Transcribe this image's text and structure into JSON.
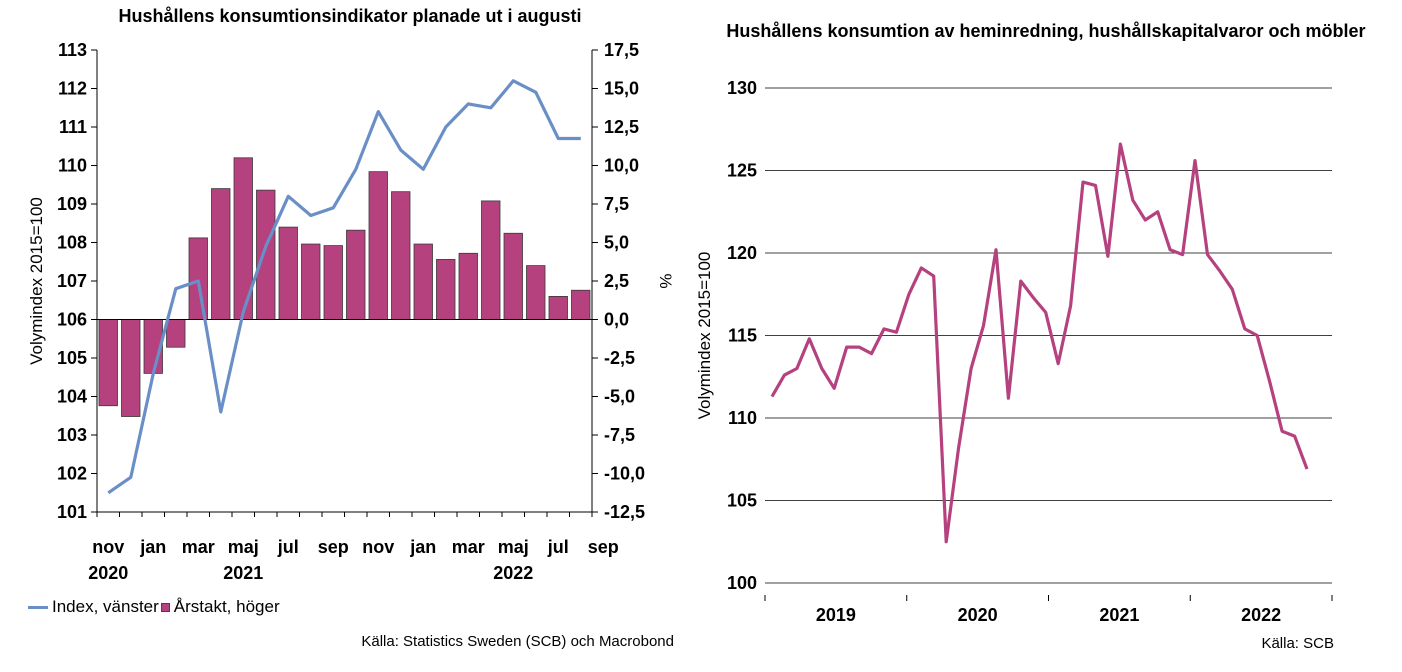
{
  "chart_data": [
    {
      "type": "bar+line",
      "title": "Hushållens konsumtionsindikator planade ut i augusti",
      "ylabel_left": "Volymindex 2015=100",
      "ylabel_right": "%",
      "ylim_left": [
        101,
        113
      ],
      "ylim_right": [
        -12.5,
        17.5
      ],
      "yticks_left": [
        "113",
        "112",
        "111",
        "110",
        "109",
        "108",
        "107",
        "106",
        "105",
        "104",
        "103",
        "102",
        "101"
      ],
      "yticks_right": [
        "17,5",
        "15,0",
        "12,5",
        "10,0",
        "7,5",
        "5,0",
        "2,5",
        "0,0",
        "-2,5",
        "-5,0",
        "-7,5",
        "-10,0",
        "-12,5"
      ],
      "x_tick_labels": [
        "nov",
        "jan",
        "mar",
        "maj",
        "jul",
        "sep",
        "nov",
        "jan",
        "mar",
        "maj",
        "jul",
        "sep"
      ],
      "x_year_labels": [
        {
          "label": "2020",
          "index": 0
        },
        {
          "label": "2021",
          "index": 6
        },
        {
          "label": "2022",
          "index": 18
        }
      ],
      "categories": [
        "2020-11",
        "2020-12",
        "2021-01",
        "2021-02",
        "2021-03",
        "2021-04",
        "2021-05",
        "2021-06",
        "2021-07",
        "2021-08",
        "2021-09",
        "2021-10",
        "2021-11",
        "2021-12",
        "2022-01",
        "2022-02",
        "2022-03",
        "2022-04",
        "2022-05",
        "2022-06",
        "2022-07",
        "2022-08"
      ],
      "series": [
        {
          "name": "Index, vänster",
          "kind": "line",
          "axis": "left",
          "color": "#6a8fc7",
          "values": [
            101.5,
            101.9,
            104.6,
            106.8,
            107.0,
            103.6,
            106.2,
            107.9,
            109.2,
            108.7,
            108.9,
            109.9,
            111.4,
            110.4,
            109.9,
            111.0,
            111.6,
            111.5,
            112.2,
            111.9,
            110.7,
            110.7
          ]
        },
        {
          "name": "Årstakt, höger",
          "kind": "bar",
          "axis": "right",
          "color": "#b5417f",
          "values": [
            -5.6,
            -6.3,
            -3.5,
            -1.8,
            5.3,
            8.5,
            10.5,
            8.4,
            6.0,
            4.9,
            4.8,
            5.8,
            9.6,
            8.3,
            4.9,
            3.9,
            4.3,
            7.7,
            5.6,
            3.5,
            1.5,
            1.9
          ]
        }
      ],
      "source": "Källa: Statistics Sweden (SCB) och Macrobond"
    },
    {
      "type": "line",
      "title": "Hushållens konsumtion av heminredning, hushållskapitalvaror och möbler",
      "ylabel": "Volymindex 2015=100",
      "ylim": [
        100,
        130
      ],
      "yticks": [
        "130",
        "125",
        "120",
        "115",
        "110",
        "105",
        "100"
      ],
      "x_year_labels": [
        "2019",
        "2020",
        "2021",
        "2022"
      ],
      "series": [
        {
          "color": "#b5417f",
          "values": [
            111.3,
            112.6,
            113.0,
            114.8,
            113.0,
            111.8,
            114.3,
            114.3,
            113.9,
            115.4,
            115.2,
            117.5,
            119.1,
            118.6,
            102.5,
            108.2,
            113.0,
            115.6,
            120.2,
            111.2,
            118.3,
            117.3,
            116.4,
            113.3,
            116.8,
            124.3,
            124.1,
            119.8,
            126.6,
            123.2,
            122.0,
            122.5,
            120.2,
            119.9,
            125.6,
            119.9,
            118.9,
            117.8,
            115.4,
            115.0,
            112.2,
            109.2,
            108.9,
            106.9
          ]
        }
      ],
      "source": "Källa: SCB"
    }
  ],
  "legend": {
    "index_label": "Index, vänster",
    "bar_label": "Årstakt, höger"
  }
}
